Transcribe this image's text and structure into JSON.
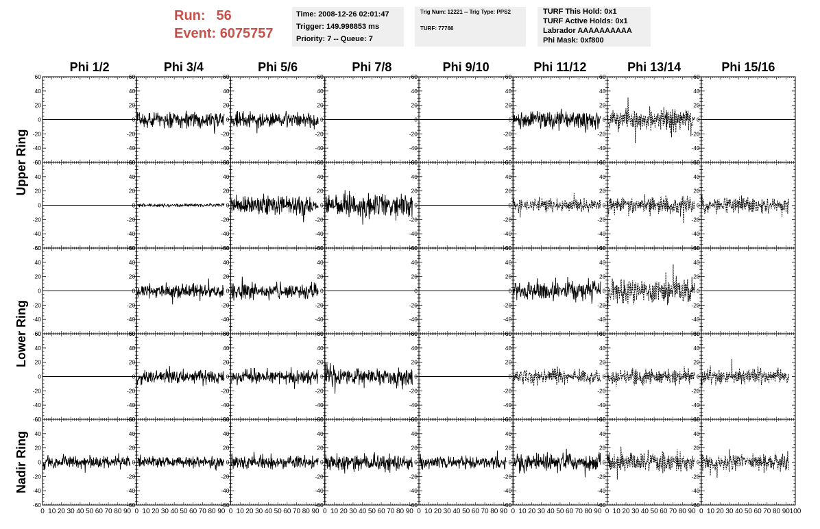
{
  "header": {
    "run_label": "Run:",
    "run_value": "56",
    "event_label": "Event:",
    "event_value": "6075757",
    "time": "Time: 2008-12-26 02:01:47",
    "trigger": "Trigger: 149.998853 ms",
    "priority": "Priority: 7 -- Queue: 7",
    "trig_num": "Trig Num: 12221 -- Trig Type: PPS2",
    "turf": "TURF: 77766",
    "turf_this_hold": "TURF This Hold: 0x1",
    "turf_active_holds": "TURF Active Holds: 0x1",
    "labrador": "Labrador AAAAAAAAAA",
    "phi_mask": "Phi Mask: 0xf800"
  },
  "chart_data": {
    "type": "line",
    "columns": [
      "Phi 1/2",
      "Phi 3/4",
      "Phi 5/6",
      "Phi 7/8",
      "Phi 9/10",
      "Phi 11/12",
      "Phi 13/14",
      "Phi 15/16"
    ],
    "row_groups": [
      {
        "label": "Upper Ring",
        "rows": [
          0,
          1
        ]
      },
      {
        "label": "Lower Ring",
        "rows": [
          2,
          3
        ]
      },
      {
        "label": "Nadir Ring",
        "rows": [
          4
        ]
      }
    ],
    "xlim": [
      0,
      100
    ],
    "ylim": [
      -60,
      60
    ],
    "y_ticks": [
      "-60",
      "-40",
      "-20",
      "0",
      "20",
      "40",
      "60"
    ],
    "x_ticks": [
      "0",
      "10",
      "20",
      "30",
      "40",
      "50",
      "60",
      "70",
      "80",
      "90",
      "100"
    ],
    "grid": false,
    "panels": [
      [
        {
          "style": "flat"
        },
        {
          "style": "solid",
          "amplitude": 14
        },
        {
          "style": "solid",
          "amplitude": 14
        },
        {
          "style": "flat"
        },
        {
          "style": "flat"
        },
        {
          "style": "solid",
          "amplitude": 15
        },
        {
          "style": "dotted",
          "amplitude": 20
        },
        {
          "style": "flat"
        }
      ],
      [
        {
          "style": "flat"
        },
        {
          "style": "solid",
          "amplitude": 3
        },
        {
          "style": "solid",
          "amplitude": 17
        },
        {
          "style": "solid",
          "amplitude": 20
        },
        {
          "style": "flat"
        },
        {
          "style": "dotted",
          "amplitude": 12
        },
        {
          "style": "dotted",
          "amplitude": 15
        },
        {
          "style": "dotted",
          "amplitude": 13
        }
      ],
      [
        {
          "style": "flat"
        },
        {
          "style": "solid",
          "amplitude": 12
        },
        {
          "style": "solid",
          "amplitude": 14
        },
        {
          "style": "flat"
        },
        {
          "style": "flat"
        },
        {
          "style": "solid",
          "amplitude": 16
        },
        {
          "style": "dotted",
          "amplitude": 22
        },
        {
          "style": "flat"
        }
      ],
      [
        {
          "style": "flat"
        },
        {
          "style": "solid",
          "amplitude": 12
        },
        {
          "style": "solid",
          "amplitude": 13
        },
        {
          "style": "solid",
          "amplitude": 16
        },
        {
          "style": "flat"
        },
        {
          "style": "dotted",
          "amplitude": 13
        },
        {
          "style": "dotted",
          "amplitude": 14
        },
        {
          "style": "dotted",
          "amplitude": 14
        }
      ],
      [
        {
          "style": "solid",
          "amplitude": 11
        },
        {
          "style": "solid",
          "amplitude": 9
        },
        {
          "style": "solid",
          "amplitude": 11
        },
        {
          "style": "solid",
          "amplitude": 14
        },
        {
          "style": "solid",
          "amplitude": 11
        },
        {
          "style": "solid",
          "amplitude": 16
        },
        {
          "style": "dotted",
          "amplitude": 17
        },
        {
          "style": "dotted",
          "amplitude": 15
        }
      ]
    ]
  }
}
